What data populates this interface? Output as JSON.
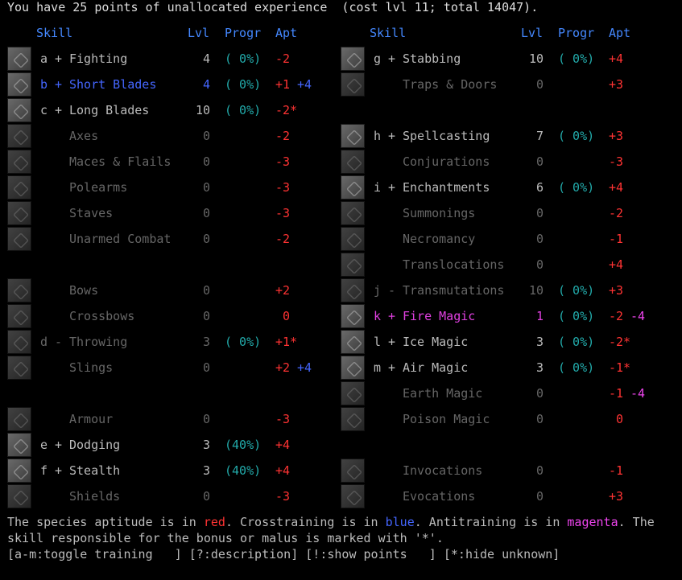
{
  "title": "You have 25 points of unallocated experience  (cost lvl 11; total 14047).",
  "headers": {
    "skill": "Skill",
    "lvl": "Lvl",
    "progr": "Progr",
    "apt": "Apt"
  },
  "left": [
    {
      "icon": "fighting-icon",
      "letter": "a",
      "mark": "+",
      "name": "Fighting",
      "lvl": "4",
      "progr": "( 0%)",
      "apt": "-2",
      "extra": "",
      "cls": "normal"
    },
    {
      "icon": "short-blades-icon",
      "letter": "b",
      "mark": "+",
      "name": "Short Blades",
      "lvl": "4",
      "progr": "( 0%)",
      "apt": "+1",
      "extra": "+4",
      "cls": "cross"
    },
    {
      "icon": "long-blades-icon",
      "letter": "c",
      "mark": "+",
      "name": "Long Blades",
      "lvl": "10",
      "progr": "( 0%)",
      "apt": "-2*",
      "extra": "",
      "cls": "normal"
    },
    {
      "icon": "axes-icon",
      "letter": "",
      "mark": "",
      "name": "Axes",
      "lvl": "0",
      "progr": "",
      "apt": "-2",
      "extra": "",
      "cls": "dim"
    },
    {
      "icon": "maces-flails-icon",
      "letter": "",
      "mark": "",
      "name": "Maces & Flails",
      "lvl": "0",
      "progr": "",
      "apt": "-3",
      "extra": "",
      "cls": "dim"
    },
    {
      "icon": "polearms-icon",
      "letter": "",
      "mark": "",
      "name": "Polearms",
      "lvl": "0",
      "progr": "",
      "apt": "-3",
      "extra": "",
      "cls": "dim"
    },
    {
      "icon": "staves-icon",
      "letter": "",
      "mark": "",
      "name": "Staves",
      "lvl": "0",
      "progr": "",
      "apt": "-3",
      "extra": "",
      "cls": "dim"
    },
    {
      "icon": "unarmed-combat-icon",
      "letter": "",
      "mark": "",
      "name": "Unarmed Combat",
      "lvl": "0",
      "progr": "",
      "apt": "-2",
      "extra": "",
      "cls": "dim"
    },
    null,
    {
      "icon": "bows-icon",
      "letter": "",
      "mark": "",
      "name": "Bows",
      "lvl": "0",
      "progr": "",
      "apt": "+2",
      "extra": "",
      "cls": "dim"
    },
    {
      "icon": "crossbows-icon",
      "letter": "",
      "mark": "",
      "name": "Crossbows",
      "lvl": "0",
      "progr": "",
      "apt": " 0",
      "extra": "",
      "cls": "dim"
    },
    {
      "icon": "throwing-icon",
      "letter": "d",
      "mark": "-",
      "name": "Throwing",
      "lvl": "3",
      "progr": "( 0%)",
      "apt": "+1*",
      "extra": "",
      "cls": "dim"
    },
    {
      "icon": "slings-icon",
      "letter": "",
      "mark": "",
      "name": "Slings",
      "lvl": "0",
      "progr": "",
      "apt": "+2",
      "extra": "+4",
      "cls": "dim"
    },
    null,
    {
      "icon": "armour-icon",
      "letter": "",
      "mark": "",
      "name": "Armour",
      "lvl": "0",
      "progr": "",
      "apt": "-3",
      "extra": "",
      "cls": "dim"
    },
    {
      "icon": "dodging-icon",
      "letter": "e",
      "mark": "+",
      "name": "Dodging",
      "lvl": "3",
      "progr": "(40%)",
      "apt": "+4",
      "extra": "",
      "cls": "normal"
    },
    {
      "icon": "stealth-icon",
      "letter": "f",
      "mark": "+",
      "name": "Stealth",
      "lvl": "3",
      "progr": "(40%)",
      "apt": "+4",
      "extra": "",
      "cls": "normal"
    },
    {
      "icon": "shields-icon",
      "letter": "",
      "mark": "",
      "name": "Shields",
      "lvl": "0",
      "progr": "",
      "apt": "-3",
      "extra": "",
      "cls": "dim"
    }
  ],
  "right": [
    {
      "icon": "stabbing-icon",
      "letter": "g",
      "mark": "+",
      "name": "Stabbing",
      "lvl": "10",
      "progr": "( 0%)",
      "apt": "+4",
      "extra": "",
      "cls": "normal"
    },
    {
      "icon": "traps-doors-icon",
      "letter": "",
      "mark": "",
      "name": "Traps & Doors",
      "lvl": "0",
      "progr": "",
      "apt": "+3",
      "extra": "",
      "cls": "dim"
    },
    null,
    {
      "icon": "spellcasting-icon",
      "letter": "h",
      "mark": "+",
      "name": "Spellcasting",
      "lvl": "7",
      "progr": "( 0%)",
      "apt": "+3",
      "extra": "",
      "cls": "normal"
    },
    {
      "icon": "conjurations-icon",
      "letter": "",
      "mark": "",
      "name": "Conjurations",
      "lvl": "0",
      "progr": "",
      "apt": "-3",
      "extra": "",
      "cls": "dim"
    },
    {
      "icon": "enchantments-icon",
      "letter": "i",
      "mark": "+",
      "name": "Enchantments",
      "lvl": "6",
      "progr": "( 0%)",
      "apt": "+4",
      "extra": "",
      "cls": "normal"
    },
    {
      "icon": "summonings-icon",
      "letter": "",
      "mark": "",
      "name": "Summonings",
      "lvl": "0",
      "progr": "",
      "apt": "-2",
      "extra": "",
      "cls": "dim"
    },
    {
      "icon": "necromancy-icon",
      "letter": "",
      "mark": "",
      "name": "Necromancy",
      "lvl": "0",
      "progr": "",
      "apt": "-1",
      "extra": "",
      "cls": "dim"
    },
    {
      "icon": "translocations-icon",
      "letter": "",
      "mark": "",
      "name": "Translocations",
      "lvl": "0",
      "progr": "",
      "apt": "+4",
      "extra": "",
      "cls": "dim"
    },
    {
      "icon": "transmutations-icon",
      "letter": "j",
      "mark": "-",
      "name": "Transmutations",
      "lvl": "10",
      "progr": "( 0%)",
      "apt": "+3",
      "extra": "",
      "cls": "dim"
    },
    {
      "icon": "fire-magic-icon",
      "letter": "k",
      "mark": "+",
      "name": "Fire Magic",
      "lvl": "1",
      "progr": "( 0%)",
      "apt": "-2",
      "extra": "-4",
      "cls": "magenta"
    },
    {
      "icon": "ice-magic-icon",
      "letter": "l",
      "mark": "+",
      "name": "Ice Magic",
      "lvl": "3",
      "progr": "( 0%)",
      "apt": "-2*",
      "extra": "",
      "cls": "normal"
    },
    {
      "icon": "air-magic-icon",
      "letter": "m",
      "mark": "+",
      "name": "Air Magic",
      "lvl": "3",
      "progr": "( 0%)",
      "apt": "-1*",
      "extra": "",
      "cls": "normal"
    },
    {
      "icon": "earth-magic-icon",
      "letter": "",
      "mark": "",
      "name": "Earth Magic",
      "lvl": "0",
      "progr": "",
      "apt": "-1",
      "extra": "-4",
      "cls": "dim"
    },
    {
      "icon": "poison-magic-icon",
      "letter": "",
      "mark": "",
      "name": "Poison Magic",
      "lvl": "0",
      "progr": "",
      "apt": " 0",
      "extra": "",
      "cls": "dim"
    },
    null,
    {
      "icon": "invocations-icon",
      "letter": "",
      "mark": "",
      "name": "Invocations",
      "lvl": "0",
      "progr": "",
      "apt": "-1",
      "extra": "",
      "cls": "dim"
    },
    {
      "icon": "evocations-icon",
      "letter": "",
      "mark": "",
      "name": "Evocations",
      "lvl": "0",
      "progr": "",
      "apt": "+3",
      "extra": "",
      "cls": "dim"
    }
  ],
  "legend": {
    "p1": "The species aptitude is in ",
    "red_word": "red",
    "p2": ". Crosstraining is in ",
    "blue_word": "blue",
    "p3": ". Antitraining is in ",
    "magenta_word": "magenta",
    "p4": ". The",
    "line2": "skill responsible for the bonus or malus is marked with '*'."
  },
  "footer": "[a-m:toggle training   ] [?:description] [!:show points   ] [*:hide unknown]"
}
